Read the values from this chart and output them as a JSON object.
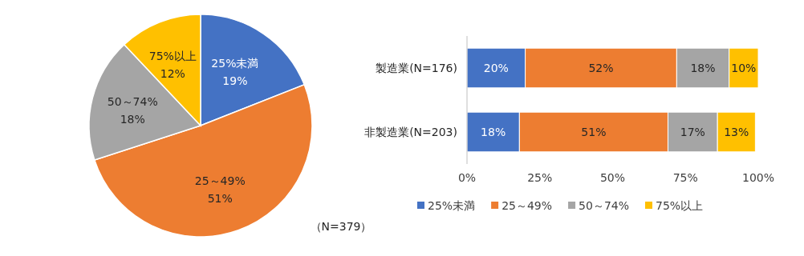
{
  "chart_data": [
    {
      "type": "pie",
      "categories": [
        "25%未満",
        "25～49%",
        "50～74%",
        "75%以上"
      ],
      "values": [
        19,
        51,
        18,
        12
      ],
      "value_labels": [
        "19%",
        "51%",
        "18%",
        "12%"
      ],
      "colors": [
        "#4472c4",
        "#ed7d31",
        "#a5a5a5",
        "#ffc000"
      ],
      "legend": false,
      "annotations": [
        "（N=379）"
      ]
    },
    {
      "type": "bar",
      "orientation": "horizontal",
      "stacked": true,
      "categories": [
        "製造業(N=176)",
        "非製造業(N=203)"
      ],
      "series": [
        {
          "name": "25%未満",
          "color": "#4472c4",
          "values": [
            20,
            18
          ],
          "value_labels": [
            "20%",
            "18%"
          ]
        },
        {
          "name": "25～49%",
          "color": "#ed7d31",
          "values": [
            52,
            51
          ],
          "value_labels": [
            "52%",
            "51%"
          ]
        },
        {
          "name": "50～74%",
          "color": "#a5a5a5",
          "values": [
            18,
            17
          ],
          "value_labels": [
            "18%",
            "17%"
          ]
        },
        {
          "name": "75%以上",
          "color": "#ffc000",
          "values": [
            10,
            13
          ],
          "value_labels": [
            "10%",
            "13%"
          ]
        }
      ],
      "xlim": [
        0,
        100
      ],
      "xticks": [
        {
          "value": 0,
          "label": "0%"
        },
        {
          "value": 25,
          "label": "25%"
        },
        {
          "value": 50,
          "label": "50%"
        },
        {
          "value": 75,
          "label": "75%"
        },
        {
          "value": 100,
          "label": "100%"
        }
      ],
      "legend": "bottom",
      "grid": false
    }
  ]
}
